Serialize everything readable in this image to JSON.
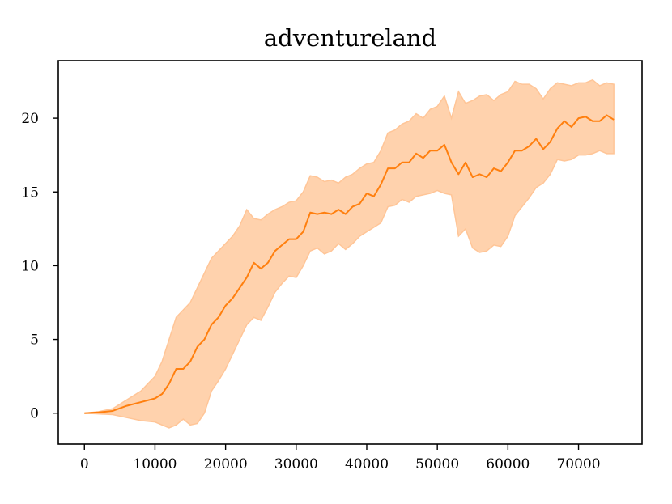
{
  "chart_data": {
    "type": "area",
    "title": "adventureland",
    "xlabel": "",
    "ylabel": "",
    "xlim": [
      -3700,
      79000
    ],
    "ylim": [
      -2.1,
      23.9
    ],
    "xticks": [
      0,
      10000,
      20000,
      30000,
      40000,
      50000,
      60000,
      70000
    ],
    "yticks": [
      0,
      5,
      10,
      15,
      20
    ],
    "grid": false,
    "colors": {
      "line": "#ff7f0e",
      "band": "#ffd2ad",
      "band_edge": "#ffc597"
    },
    "series": [
      {
        "x": [
          0,
          2000,
          4000,
          6000,
          8000,
          10000,
          11000,
          12000,
          13000,
          14000,
          15000,
          16000,
          17000,
          18000,
          19000,
          20000,
          21000,
          22000,
          23000,
          24000,
          25000,
          26000,
          27000,
          28000,
          29000,
          30000,
          31000,
          32000,
          33000,
          34000,
          35000,
          36000,
          37000,
          38000,
          39000,
          40000,
          41000,
          42000,
          43000,
          44000,
          45000,
          46000,
          47000,
          48000,
          49000,
          50000,
          51000,
          52000,
          53000,
          54000,
          55000,
          56000,
          57000,
          58000,
          59000,
          60000,
          61000,
          62000,
          63000,
          64000,
          65000,
          66000,
          67000,
          68000,
          69000,
          70000,
          71000,
          72000,
          73000,
          74000,
          75000
        ],
        "mean": [
          0.0,
          0.05,
          0.15,
          0.5,
          0.75,
          1.0,
          1.3,
          2.0,
          3.0,
          3.0,
          3.5,
          4.5,
          5.0,
          6.0,
          6.5,
          7.3,
          7.8,
          8.5,
          9.2,
          10.2,
          9.8,
          10.2,
          11.0,
          11.4,
          11.8,
          11.8,
          12.3,
          13.6,
          13.5,
          13.6,
          13.5,
          13.8,
          13.5,
          14.0,
          14.2,
          14.9,
          14.7,
          15.5,
          16.6,
          16.6,
          17.0,
          17.0,
          17.6,
          17.3,
          17.8,
          17.8,
          18.2,
          17.0,
          16.2,
          17.0,
          16.0,
          16.2,
          16.0,
          16.6,
          16.4,
          17.0,
          17.8,
          17.8,
          18.1,
          18.6,
          17.9,
          18.4,
          19.3,
          19.8,
          19.4,
          20.0,
          20.1,
          19.8,
          19.8,
          20.2,
          19.9
        ],
        "upper": [
          0.0,
          0.1,
          0.3,
          0.9,
          1.5,
          2.5,
          3.5,
          5.0,
          6.5,
          7.0,
          7.5,
          8.5,
          9.5,
          10.5,
          11.0,
          11.5,
          12.0,
          12.7,
          13.8,
          13.2,
          13.1,
          13.5,
          13.8,
          14.0,
          14.3,
          14.4,
          15.0,
          16.1,
          16.0,
          15.7,
          15.8,
          15.6,
          16.0,
          16.2,
          16.6,
          16.9,
          17.0,
          17.8,
          19.0,
          19.2,
          19.6,
          19.8,
          20.3,
          20.0,
          20.6,
          20.8,
          21.5,
          20.0,
          21.8,
          21.0,
          21.2,
          21.5,
          21.6,
          21.2,
          21.6,
          21.8,
          22.5,
          22.3,
          22.3,
          22.0,
          21.3,
          22.0,
          22.4,
          22.3,
          22.2,
          22.4,
          22.4,
          22.6,
          22.2,
          22.4,
          22.3
        ],
        "lower": [
          0.0,
          -0.05,
          -0.1,
          -0.3,
          -0.5,
          -0.6,
          -0.8,
          -1.0,
          -0.8,
          -0.4,
          -0.8,
          -0.7,
          0.0,
          1.5,
          2.2,
          3.0,
          4.0,
          5.0,
          6.0,
          6.5,
          6.3,
          7.2,
          8.2,
          8.8,
          9.3,
          9.2,
          10.0,
          11.0,
          11.2,
          10.8,
          11.0,
          11.5,
          11.1,
          11.5,
          12.0,
          12.3,
          12.6,
          12.9,
          14.0,
          14.1,
          14.5,
          14.3,
          14.7,
          14.8,
          14.9,
          15.1,
          14.9,
          14.8,
          12.0,
          12.5,
          11.2,
          10.9,
          11.0,
          11.4,
          11.3,
          12.0,
          13.4,
          14.0,
          14.6,
          15.3,
          15.6,
          16.2,
          17.2,
          17.1,
          17.2,
          17.5,
          17.5,
          17.6,
          17.8,
          17.6,
          17.6
        ]
      }
    ]
  }
}
